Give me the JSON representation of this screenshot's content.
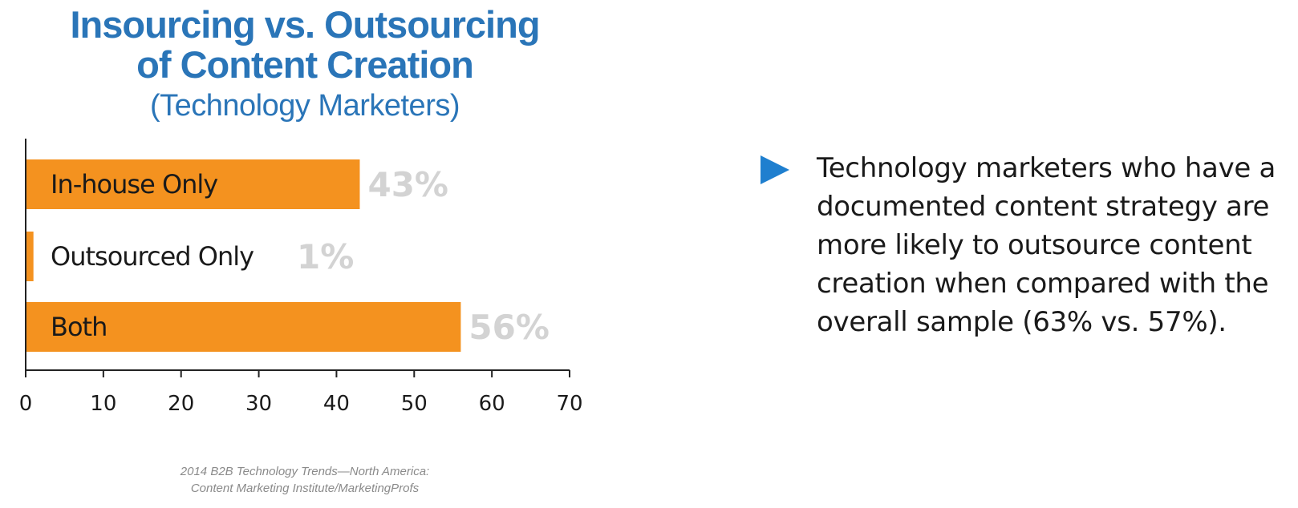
{
  "chart_data": {
    "type": "bar",
    "orientation": "horizontal",
    "title": "Insourcing vs. Outsourcing of Content Creation",
    "title_lines": [
      "Insourcing vs. Outsourcing",
      "of Content Creation"
    ],
    "subtitle": "(Technology Marketers)",
    "categories": [
      "In-house Only",
      "Outsourced Only",
      "Both"
    ],
    "values": [
      43,
      1,
      56
    ],
    "value_labels": [
      "43%",
      "1%",
      "56%"
    ],
    "xlim": [
      0,
      70
    ],
    "xticks": [
      "0",
      "10",
      "20",
      "30",
      "40",
      "50",
      "60",
      "70"
    ],
    "xlabel": "",
    "ylabel": "",
    "grid": false,
    "legend": "none",
    "bar_color": "#f4921f",
    "value_label_color": "#d3d3d3",
    "category_label_color": "#1a1a1a",
    "axis_color": "#222222"
  },
  "colors": {
    "title": "#2a75b8",
    "bullet_icon": "#1f7fcf",
    "body_text": "#1a1a1a",
    "source_text": "#8a8a8a"
  },
  "source": {
    "line1": "2014 B2B Technology Trends—North America:",
    "line2": "Content Marketing Institute/MarketingProfs"
  },
  "bullet": {
    "icon": "play-triangle-icon",
    "text": "Technology marketers who have a documented content strategy are more likely to outsource content creation when compared with the overall sample (63% vs. 57%)."
  }
}
